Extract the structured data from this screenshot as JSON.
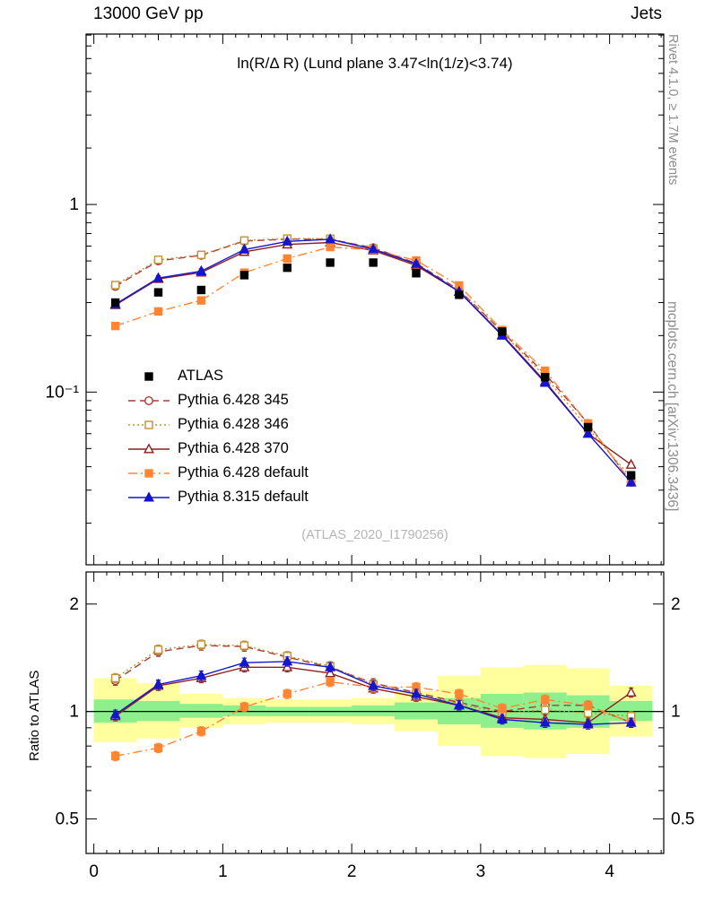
{
  "header": {
    "left": "13000 GeV pp",
    "right": "Jets"
  },
  "title": "ln(R/Δ R) (Lund plane 3.47<ln(1/z)<3.74)",
  "watermark": "(ATLAS_2020_I1790256)",
  "ratio_ylabel": "Ratio to ATLAS",
  "right_margin": {
    "top": "Rivet 4.1.0, ≥ 1.7M events",
    "bottom": "mcplots.cern.ch [arXiv:1306.3436]"
  },
  "chart_data": {
    "type": "line",
    "x": [
      0.167,
      0.5,
      0.833,
      1.167,
      1.5,
      1.833,
      2.167,
      2.5,
      2.833,
      3.167,
      3.5,
      3.833,
      4.167
    ],
    "main_axis": {
      "ylog": true,
      "ylim": [
        0.012,
        8.1
      ],
      "xlim": [
        -0.06,
        4.42
      ],
      "ytick_labels": [
        {
          "v": 1,
          "t": "1"
        },
        {
          "v": 0.1,
          "t": "10⁻¹"
        }
      ],
      "xtick_labels": [
        0,
        1,
        2,
        3,
        4
      ]
    },
    "ratio_axis": {
      "ylog": true,
      "ylim": [
        0.4,
        2.46
      ],
      "ytick_labels": [
        {
          "v": 2,
          "t": "2"
        },
        {
          "v": 1,
          "t": "1"
        },
        {
          "v": 0.5,
          "t": "0.5"
        }
      ]
    },
    "error_frac_main": 0.03,
    "error_frac_ratio": 0.03,
    "series": [
      {
        "name": "ATLAS",
        "color": "#000000",
        "marker": "square",
        "filled": true,
        "line": "none",
        "values": [
          0.3,
          0.34,
          0.35,
          0.42,
          0.46,
          0.49,
          0.49,
          0.43,
          0.33,
          0.21,
          0.12,
          0.065,
          0.036
        ],
        "ratio": null
      },
      {
        "name": "Pythia 6.428 345",
        "color": "#aa3a3a",
        "marker": "circle",
        "filled": false,
        "line": "dashed",
        "values": [
          0.366,
          0.5,
          0.536,
          0.638,
          0.653,
          0.652,
          0.588,
          0.486,
          0.35,
          0.21,
          0.125,
          0.068,
          0.033
        ],
        "ratio": [
          1.22,
          1.47,
          1.53,
          1.52,
          1.42,
          1.33,
          1.2,
          1.13,
          1.06,
          1.0,
          1.04,
          1.04,
          0.93
        ]
      },
      {
        "name": "Pythia 6.428 346",
        "color": "#c3922e",
        "marker": "square",
        "filled": false,
        "line": "dotted",
        "values": [
          0.372,
          0.507,
          0.539,
          0.643,
          0.658,
          0.657,
          0.583,
          0.482,
          0.347,
          0.208,
          0.121,
          0.064,
          0.035
        ],
        "ratio": [
          1.24,
          1.49,
          1.54,
          1.53,
          1.43,
          1.34,
          1.19,
          1.12,
          1.05,
          0.99,
          1.01,
          0.99,
          0.97
        ]
      },
      {
        "name": "Pythia 6.428 370",
        "color": "#8e1f1f",
        "marker": "triangle",
        "filled": false,
        "line": "solid",
        "values": [
          0.291,
          0.401,
          0.434,
          0.559,
          0.612,
          0.627,
          0.568,
          0.473,
          0.343,
          0.202,
          0.114,
          0.06,
          0.041
        ],
        "ratio": [
          0.97,
          1.18,
          1.24,
          1.33,
          1.33,
          1.28,
          1.16,
          1.1,
          1.04,
          0.96,
          0.95,
          0.93,
          1.13
        ]
      },
      {
        "name": "Pythia 6.428 default",
        "color": "#ff8532",
        "marker": "square",
        "filled": true,
        "line": "dashdot",
        "values": [
          0.225,
          0.269,
          0.308,
          0.433,
          0.515,
          0.593,
          0.573,
          0.503,
          0.37,
          0.214,
          0.13,
          0.068,
          0.033
        ],
        "ratio": [
          0.75,
          0.79,
          0.88,
          1.03,
          1.12,
          1.21,
          1.17,
          1.17,
          1.12,
          1.02,
          1.08,
          1.04,
          0.93
        ]
      },
      {
        "name": "Pythia 8.315 default",
        "color": "#1515cf",
        "marker": "triangle",
        "filled": true,
        "line": "solid",
        "values": [
          0.294,
          0.405,
          0.441,
          0.575,
          0.635,
          0.652,
          0.578,
          0.482,
          0.343,
          0.2,
          0.112,
          0.06,
          0.033
        ],
        "ratio": [
          0.98,
          1.19,
          1.26,
          1.37,
          1.38,
          1.33,
          1.18,
          1.12,
          1.04,
          0.95,
          0.93,
          0.92,
          0.93
        ]
      }
    ],
    "bands": {
      "bin_edges": [
        0,
        0.333,
        0.667,
        1,
        1.333,
        1.667,
        2,
        2.333,
        2.667,
        3,
        3.333,
        3.667,
        4,
        4.333
      ],
      "yellow_color": "#ffff9e",
      "green_color": "#8df08d",
      "yellow_lo": [
        0.82,
        0.84,
        0.9,
        0.92,
        0.93,
        0.93,
        0.92,
        0.88,
        0.8,
        0.75,
        0.74,
        0.76,
        0.85
      ],
      "yellow_hi": [
        1.24,
        1.2,
        1.12,
        1.09,
        1.08,
        1.08,
        1.09,
        1.14,
        1.26,
        1.33,
        1.35,
        1.32,
        1.18
      ],
      "green_lo": [
        0.93,
        0.94,
        0.96,
        0.97,
        0.97,
        0.97,
        0.97,
        0.95,
        0.92,
        0.9,
        0.89,
        0.9,
        0.94
      ],
      "green_hi": [
        1.08,
        1.07,
        1.05,
        1.04,
        1.03,
        1.03,
        1.04,
        1.06,
        1.09,
        1.12,
        1.13,
        1.11,
        1.07
      ]
    }
  }
}
